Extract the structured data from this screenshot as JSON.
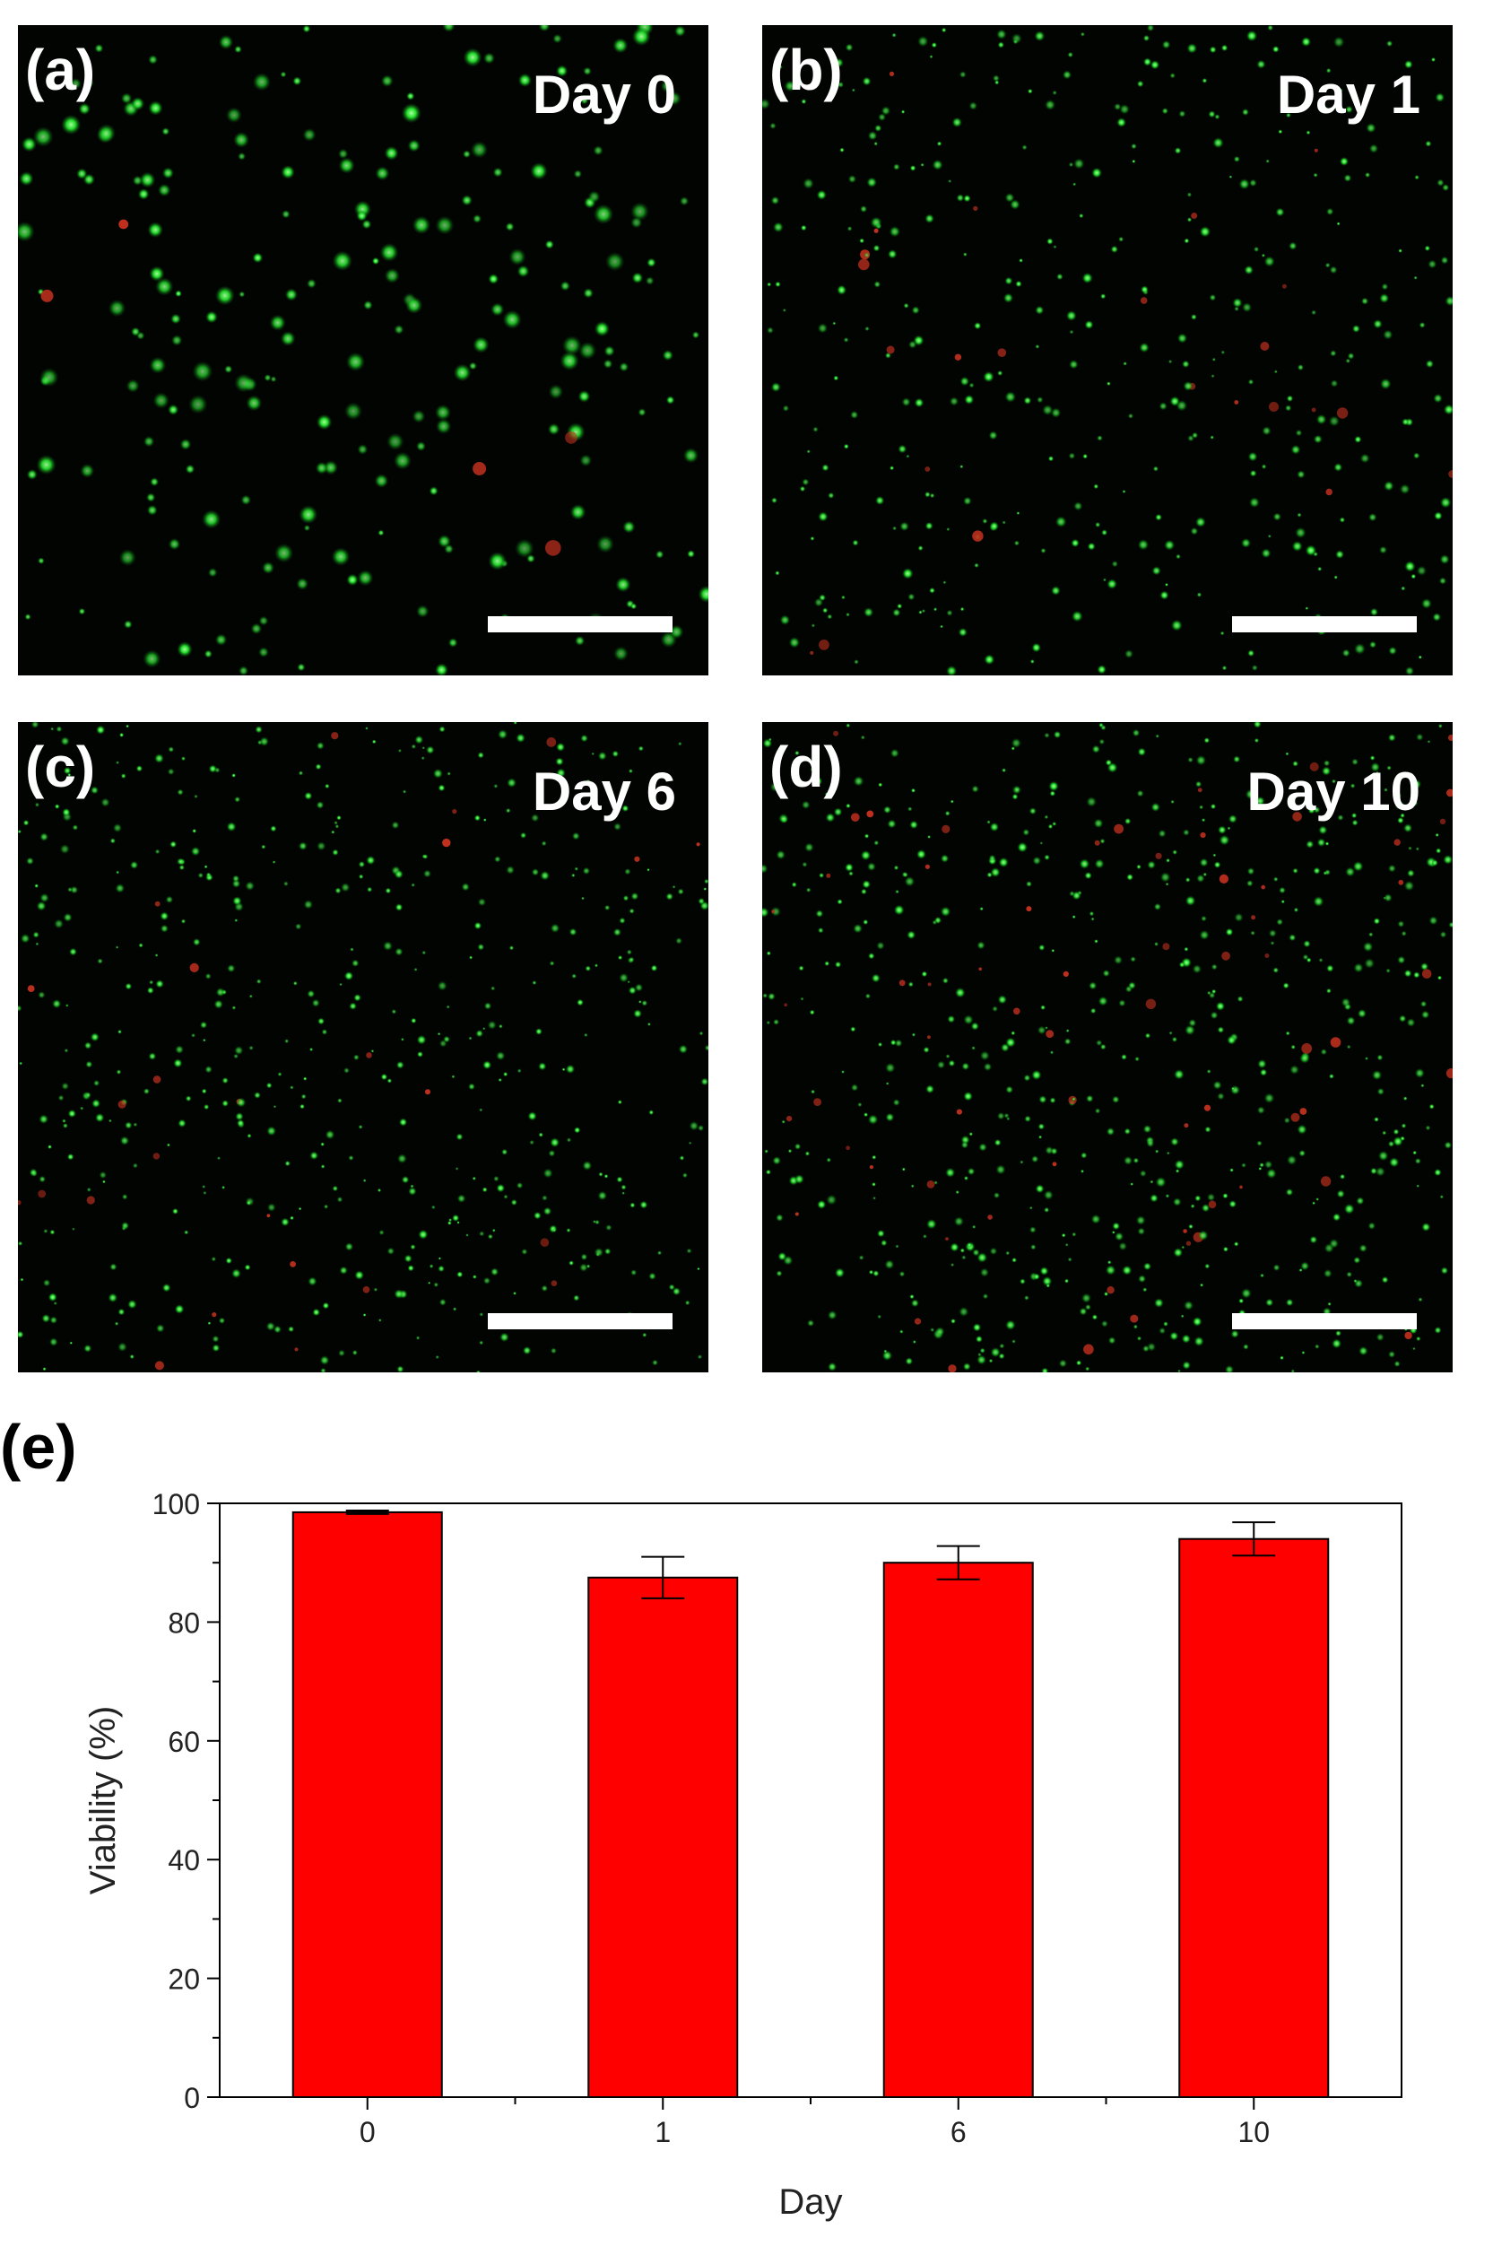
{
  "panels": [
    {
      "letter": "(a)",
      "label": "Day 0",
      "density": 230,
      "size": 1.35,
      "red": 0.03
    },
    {
      "letter": "(b)",
      "label": "Day 1",
      "density": 420,
      "size": 0.75,
      "red": 0.06
    },
    {
      "letter": "(c)",
      "label": "Day 6",
      "density": 560,
      "size": 0.65,
      "red": 0.04
    },
    {
      "letter": "(d)",
      "label": "Day 10",
      "density": 720,
      "size": 0.7,
      "red": 0.08
    }
  ],
  "colors": {
    "live_cell": "#22e02a",
    "dead_cell": "#c0301e",
    "bar_fill": "#ff0000",
    "bar_stroke": "#000000"
  },
  "chart_letter": "(e)",
  "chart_data": {
    "type": "bar",
    "categories": [
      "0",
      "1",
      "6",
      "10"
    ],
    "values": [
      98.5,
      87.5,
      90,
      94
    ],
    "errors": [
      0.3,
      3.5,
      2.8,
      2.8
    ],
    "xlabel": "Day",
    "ylabel": "Viability (%)",
    "ylim": [
      0,
      100
    ],
    "yticks": [
      0,
      20,
      40,
      60,
      80,
      100
    ],
    "grid": false,
    "legend": "none"
  }
}
